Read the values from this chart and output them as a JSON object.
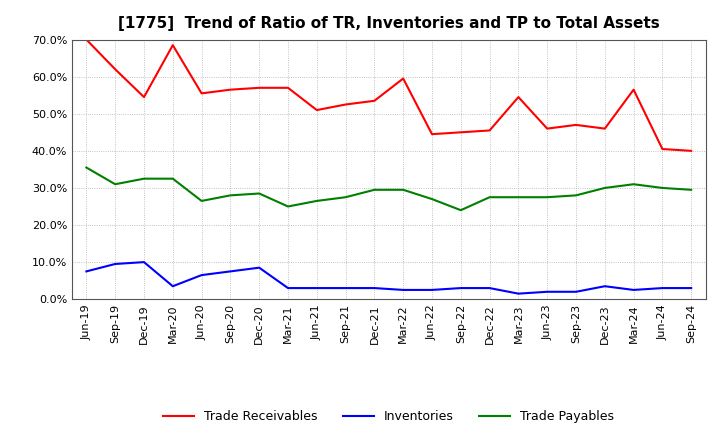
{
  "title": "[1775]  Trend of Ratio of TR, Inventories and TP to Total Assets",
  "x_labels": [
    "Jun-19",
    "Sep-19",
    "Dec-19",
    "Mar-20",
    "Jun-20",
    "Sep-20",
    "Dec-20",
    "Mar-21",
    "Jun-21",
    "Sep-21",
    "Dec-21",
    "Mar-22",
    "Jun-22",
    "Sep-22",
    "Dec-22",
    "Mar-23",
    "Jun-23",
    "Sep-23",
    "Dec-23",
    "Mar-24",
    "Jun-24",
    "Sep-24"
  ],
  "trade_receivables": [
    70.0,
    62.0,
    54.5,
    68.5,
    55.5,
    56.5,
    57.0,
    57.0,
    51.0,
    52.5,
    53.5,
    59.5,
    44.5,
    45.0,
    45.5,
    54.5,
    46.0,
    47.0,
    46.0,
    56.5,
    40.5,
    40.0
  ],
  "inventories": [
    7.5,
    9.5,
    10.0,
    3.5,
    6.5,
    7.5,
    8.5,
    3.0,
    3.0,
    3.0,
    3.0,
    2.5,
    2.5,
    3.0,
    3.0,
    1.5,
    2.0,
    2.0,
    3.5,
    2.5,
    3.0,
    3.0
  ],
  "trade_payables": [
    35.5,
    31.0,
    32.5,
    32.5,
    26.5,
    28.0,
    28.5,
    25.0,
    26.5,
    27.5,
    29.5,
    29.5,
    27.0,
    24.0,
    27.5,
    27.5,
    27.5,
    28.0,
    30.0,
    31.0,
    30.0,
    29.5
  ],
  "line_colors": {
    "trade_receivables": "#ff0000",
    "inventories": "#0000ff",
    "trade_payables": "#008000"
  },
  "ylim": [
    0.0,
    70.0
  ],
  "yticks": [
    0.0,
    10.0,
    20.0,
    30.0,
    40.0,
    50.0,
    60.0,
    70.0
  ],
  "background_color": "#ffffff",
  "grid_color": "#b0b0b0",
  "legend_labels": [
    "Trade Receivables",
    "Inventories",
    "Trade Payables"
  ],
  "title_fontsize": 11,
  "tick_fontsize": 8,
  "legend_fontsize": 9
}
